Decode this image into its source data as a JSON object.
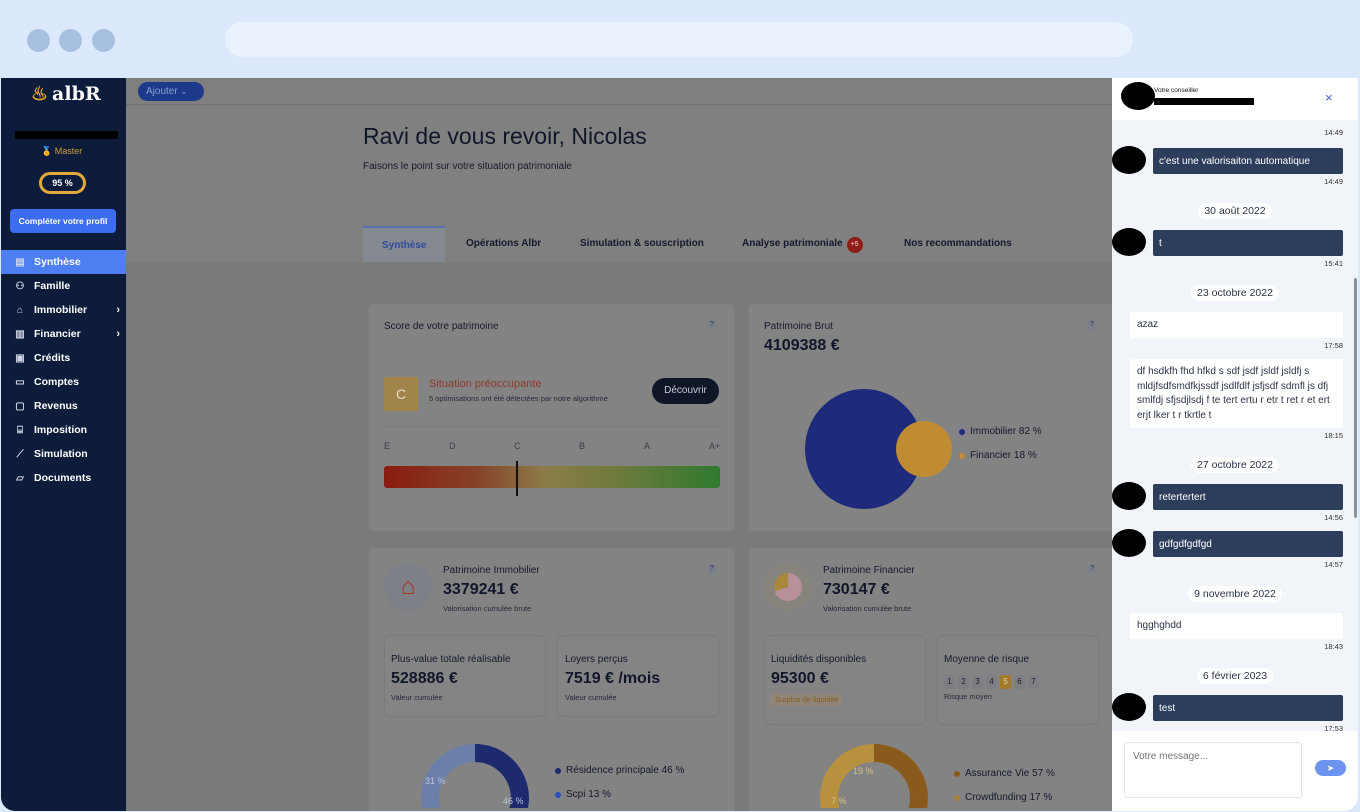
{
  "browser": {
    "dots": 3
  },
  "sidebar": {
    "logo": "albR",
    "rank": "Master",
    "profile_percent": "95 %",
    "profile_completion": 95,
    "complete_button": "Compléter votre profil",
    "items": [
      {
        "label": "Synthèse",
        "icon": "layout-icon",
        "active": true
      },
      {
        "label": "Famille",
        "icon": "users-icon"
      },
      {
        "label": "Immobilier",
        "icon": "house-icon",
        "chevron": true
      },
      {
        "label": "Financier",
        "icon": "chart-bars-icon",
        "chevron": true
      },
      {
        "label": "Crédits",
        "icon": "document-icon"
      },
      {
        "label": "Comptes",
        "icon": "card-icon"
      },
      {
        "label": "Revenus",
        "icon": "banknote-icon"
      },
      {
        "label": "Imposition",
        "icon": "bank-icon"
      },
      {
        "label": "Simulation",
        "icon": "line-chart-icon"
      },
      {
        "label": "Documents",
        "icon": "folder-icon"
      }
    ]
  },
  "topbar": {
    "add_button": "Ajouter"
  },
  "header": {
    "title": "Ravi de vous revoir, Nicolas",
    "subtitle": "Faisons le point sur votre situation patrimoniale"
  },
  "tabs": [
    {
      "label": "Synthèse",
      "active": true
    },
    {
      "label": "Opérations Albr"
    },
    {
      "label": "Simulation & souscription"
    },
    {
      "label": "Analyse patrimoniale",
      "badge": "+5"
    },
    {
      "label": "Nos recommandations"
    }
  ],
  "score": {
    "title": "Score de votre patrimoine",
    "help": "?",
    "grade": "C",
    "status": "Situation préoccupante",
    "detail": "5 optimisations ont été détectées par notre algorithme",
    "button": "Découvrir",
    "scale": [
      "E",
      "D",
      "C",
      "B",
      "A",
      "A+"
    ]
  },
  "brut": {
    "title": "Patrimoine Brut",
    "value": "4109388 €",
    "help": "?",
    "legend": [
      {
        "label": "Immobilier",
        "pct": "82 %",
        "color": "#1e2a7a"
      },
      {
        "label": "Financier",
        "pct": "18 %",
        "color": "#c08c33"
      }
    ]
  },
  "immo": {
    "title": "Patrimoine Immobilier",
    "value": "3379241 €",
    "caption": "Valorisation cumulée brute",
    "help": "?",
    "plus_value": {
      "title": "Plus-value totale réalisable",
      "value": "528886 €",
      "caption": "Valeur cumulée"
    },
    "loyers": {
      "title": "Loyers perçus",
      "value": "7519 € /mois",
      "caption": "Valeur cumulée"
    },
    "donut_labels": [
      "31 %",
      "46 %"
    ],
    "legend": [
      {
        "label": "Résidence principale",
        "pct": "46 %",
        "color": "#1e2a6e"
      },
      {
        "label": "Scpi",
        "pct": "13 %",
        "color": "#2a4fc0"
      }
    ]
  },
  "fin": {
    "title": "Patrimoine Financier",
    "value": "730147 €",
    "caption": "Valorisation cumulée brute",
    "help": "?",
    "liquid": {
      "title": "Liquidités disponibles",
      "value": "95300 €",
      "tag": "Surplus de liquidité"
    },
    "risk": {
      "title": "Moyenne de risque",
      "levels": [
        "1",
        "2",
        "3",
        "4",
        "5",
        "6",
        "7"
      ],
      "selected": "5",
      "caption": "Risque moyen"
    },
    "donut_labels": [
      "19 %",
      "7 %"
    ],
    "legend": [
      {
        "label": "Assurance Vie",
        "pct": "57 %",
        "color": "#8a5a1c"
      },
      {
        "label": "Crowdfunding",
        "pct": "17 %",
        "color": "#a8823a"
      }
    ]
  },
  "chat": {
    "header_label": "Votre conseiller",
    "placeholder": "Votre message...",
    "items": [
      {
        "type": "time",
        "time": "14:49"
      },
      {
        "type": "dark",
        "text": "c'est une valorisaiton automatique",
        "time": "14:49"
      },
      {
        "type": "date",
        "text": "30 août 2022"
      },
      {
        "type": "dark",
        "text": "t",
        "time": "15:41"
      },
      {
        "type": "date",
        "text": "23 octobre 2022"
      },
      {
        "type": "light",
        "text": "azaz",
        "time": "17:58"
      },
      {
        "type": "light",
        "text": "df hsdkfh fhd hfkd s sdf jsdf jsldf jsldfj s mldjfsdfsmdfkjssdf jsdlfdlf jsfjsdf sdmfl js dfj smlfdj sfjsdjlsdj f te tert ertu r etr t ret r et ert erjt lker t r tkrtle t",
        "time": "18:15"
      },
      {
        "type": "date",
        "text": "27 octobre 2022"
      },
      {
        "type": "dark",
        "text": "retertertert",
        "time": "14:56"
      },
      {
        "type": "dark",
        "text": "gdfgdfgdfgd",
        "time": "14:57"
      },
      {
        "type": "date",
        "text": "9 novembre 2022"
      },
      {
        "type": "light",
        "text": "hgghghdd",
        "time": "18:43"
      },
      {
        "type": "date",
        "text": "6 février 2023"
      },
      {
        "type": "dark",
        "text": "test",
        "time": "17:53"
      }
    ]
  }
}
